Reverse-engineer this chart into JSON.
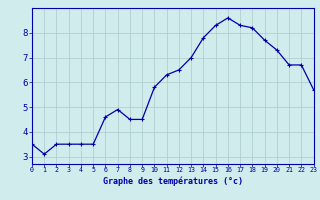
{
  "hours": [
    0,
    1,
    2,
    3,
    4,
    5,
    6,
    7,
    8,
    9,
    10,
    11,
    12,
    13,
    14,
    15,
    16,
    17,
    18,
    19,
    20,
    21,
    22,
    23
  ],
  "temps": [
    3.5,
    3.1,
    3.5,
    3.5,
    3.5,
    3.5,
    4.6,
    4.9,
    4.5,
    4.5,
    5.8,
    6.3,
    6.5,
    7.0,
    7.8,
    8.3,
    8.6,
    8.3,
    8.2,
    7.7,
    7.3,
    6.7,
    6.7,
    5.7
  ],
  "line_color": "#0000aa",
  "marker": "+",
  "marker_size": 3,
  "bg_color": "#d0ecec",
  "grid_color": "#aacccc",
  "axis_color": "#0000aa",
  "tick_color": "#0000aa",
  "xlabel": "Graphe des températures (°c)",
  "xlim": [
    0,
    23
  ],
  "ylim": [
    2.7,
    9.0
  ],
  "yticks": [
    3,
    4,
    5,
    6,
    7,
    8
  ],
  "xticks": [
    0,
    1,
    2,
    3,
    4,
    5,
    6,
    7,
    8,
    9,
    10,
    11,
    12,
    13,
    14,
    15,
    16,
    17,
    18,
    19,
    20,
    21,
    22,
    23
  ]
}
